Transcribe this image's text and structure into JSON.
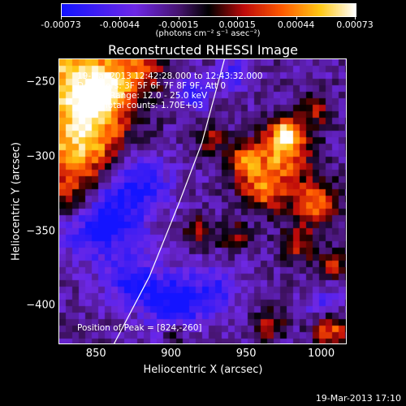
{
  "colorbar": {
    "ticks": [
      "-0.00073",
      "-0.00044",
      "-0.00015",
      "0.00015",
      "0.00044",
      "0.00073"
    ],
    "units": "(photons cm⁻² s⁻¹ asec⁻²)"
  },
  "info_lines": [
    "19-Mar-2013 12:42:28.000 to 12:43:32.000",
    "Detectors: 3F 5F 6F 7F 8F 9F, Att 0",
    "Energy Range: 12.0 - 25.0 keV",
    "Clean    Total counts: 1.70E+03"
  ],
  "peak_text": "Position of Peak = [824,-260]",
  "timestamp": "19-Mar-2013 17:10",
  "chart_data": {
    "type": "heatmap",
    "title": "Reconstructed RHESSI Image",
    "xlabel": "Heliocentric X (arcsec)",
    "ylabel": "Heliocentric Y (arcsec)",
    "xlim": [
      825,
      1017
    ],
    "ylim": [
      -426,
      -234
    ],
    "xticks": [
      850,
      900,
      950,
      1000
    ],
    "yticks": [
      -250,
      -300,
      -350,
      -400
    ],
    "color_range": [
      -0.00073,
      0.00073
    ],
    "colormap": "blue-purple-black-red-orange-yellow-white",
    "limb_curve": [
      [
        861,
        -426
      ],
      [
        885,
        -380
      ],
      [
        905,
        -330
      ],
      [
        920,
        -290
      ],
      [
        935,
        -234
      ]
    ],
    "grid": false,
    "legend": "none"
  }
}
